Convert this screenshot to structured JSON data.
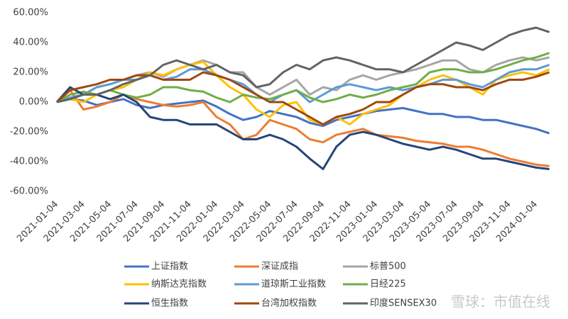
{
  "chart_data": {
    "type": "line",
    "categories": [
      "2021-01-04",
      null,
      "2021-03-04",
      null,
      "2021-05-04",
      null,
      "2021-07-04",
      null,
      "2021-09-04",
      null,
      "2021-11-04",
      null,
      "2022-01-04",
      null,
      "2022-03-04",
      null,
      "2022-05-04",
      null,
      "2022-07-04",
      null,
      "2022-09-04",
      null,
      "2022-11-04",
      null,
      "2023-01-04",
      null,
      "2023-03-04",
      null,
      "2023-05-04",
      null,
      "2023-07-04",
      null,
      "2023-09-04",
      null,
      "2023-11-04",
      null,
      "2024-01-04",
      null
    ],
    "ylim": [
      -60,
      60
    ],
    "yticks": [
      {
        "value": 60,
        "label": "60.00%"
      },
      {
        "value": 40,
        "label": "40.00%"
      },
      {
        "value": 20,
        "label": "20.00%"
      },
      {
        "value": 0,
        "label": "0.00%"
      },
      {
        "value": -20,
        "label": "-20.00%"
      },
      {
        "value": -40,
        "label": "-40.00%"
      },
      {
        "value": -60,
        "label": "-60.00%"
      }
    ],
    "grid": false,
    "series": [
      {
        "name": "上证指数",
        "color": "#4472c4",
        "values": [
          0,
          2,
          1,
          -2,
          0,
          2,
          -2,
          -4,
          -2,
          -1,
          0,
          1,
          -3,
          -8,
          -12,
          -10,
          -6,
          -8,
          -10,
          -14,
          -16,
          -12,
          -10,
          -8,
          -6,
          -5,
          -4,
          -6,
          -8,
          -8,
          -10,
          -10,
          -12,
          -12,
          -14,
          -16,
          -18,
          -21
        ]
      },
      {
        "name": "深证成指",
        "color": "#ed7d31",
        "values": [
          0,
          8,
          -5,
          -3,
          0,
          5,
          2,
          0,
          -2,
          -3,
          -2,
          0,
          -10,
          -15,
          -25,
          -22,
          -12,
          -15,
          -18,
          -25,
          -27,
          -22,
          -20,
          -18,
          -22,
          -23,
          -24,
          -26,
          -27,
          -28,
          -30,
          -30,
          -32,
          -35,
          -38,
          -40,
          -42,
          -43
        ]
      },
      {
        "name": "标普500",
        "color": "#a5a5a5",
        "values": [
          0,
          2,
          5,
          10,
          12,
          15,
          18,
          20,
          17,
          22,
          25,
          28,
          25,
          20,
          20,
          10,
          5,
          10,
          15,
          5,
          10,
          8,
          15,
          18,
          15,
          18,
          20,
          22,
          25,
          28,
          28,
          22,
          20,
          25,
          28,
          30,
          28,
          30
        ]
      },
      {
        "name": "纳斯达克指数",
        "color": "#ffc000",
        "values": [
          0,
          2,
          0,
          5,
          8,
          10,
          15,
          20,
          18,
          22,
          25,
          27,
          18,
          10,
          5,
          -5,
          -10,
          -2,
          0,
          -12,
          -15,
          -10,
          -15,
          -8,
          -5,
          -2,
          5,
          10,
          15,
          18,
          15,
          10,
          5,
          15,
          18,
          20,
          18,
          22
        ]
      },
      {
        "name": "道琼斯工业指数",
        "color": "#5b9bd5",
        "values": [
          0,
          3,
          5,
          10,
          12,
          15,
          15,
          18,
          15,
          17,
          22,
          22,
          18,
          15,
          12,
          5,
          0,
          5,
          8,
          0,
          5,
          10,
          12,
          10,
          8,
          10,
          8,
          10,
          12,
          15,
          15,
          12,
          10,
          15,
          20,
          22,
          22,
          25
        ]
      },
      {
        "name": "日经225",
        "color": "#70ad47",
        "values": [
          0,
          5,
          7,
          5,
          8,
          5,
          3,
          5,
          10,
          10,
          8,
          7,
          3,
          0,
          5,
          3,
          2,
          5,
          8,
          3,
          0,
          2,
          5,
          3,
          5,
          8,
          10,
          12,
          20,
          22,
          22,
          20,
          20,
          22,
          25,
          28,
          30,
          33
        ]
      },
      {
        "name": "恒生指数",
        "color": "#264478",
        "values": [
          0,
          10,
          5,
          5,
          2,
          5,
          0,
          -10,
          -12,
          -12,
          -15,
          -15,
          -15,
          -20,
          -25,
          -25,
          -22,
          -25,
          -30,
          -38,
          -45,
          -30,
          -22,
          -20,
          -22,
          -25,
          -28,
          -30,
          -32,
          -30,
          -32,
          -35,
          -38,
          -38,
          -40,
          -42,
          -44,
          -45
        ]
      },
      {
        "name": "台湾加权指数",
        "color": "#9e480e",
        "values": [
          0,
          8,
          10,
          12,
          15,
          15,
          18,
          18,
          15,
          15,
          15,
          20,
          18,
          15,
          10,
          5,
          0,
          0,
          -5,
          -10,
          -15,
          -10,
          -8,
          -5,
          0,
          0,
          5,
          10,
          12,
          12,
          10,
          10,
          8,
          12,
          15,
          15,
          17,
          20
        ]
      },
      {
        "name": "印度SENSEX30",
        "color": "#636363",
        "values": [
          0,
          2,
          5,
          5,
          8,
          12,
          15,
          18,
          25,
          28,
          25,
          22,
          25,
          20,
          18,
          10,
          12,
          20,
          25,
          22,
          28,
          30,
          28,
          25,
          22,
          22,
          20,
          25,
          30,
          35,
          40,
          38,
          35,
          40,
          45,
          48,
          50,
          47
        ]
      }
    ]
  },
  "watermark": "雪球：市值在线"
}
